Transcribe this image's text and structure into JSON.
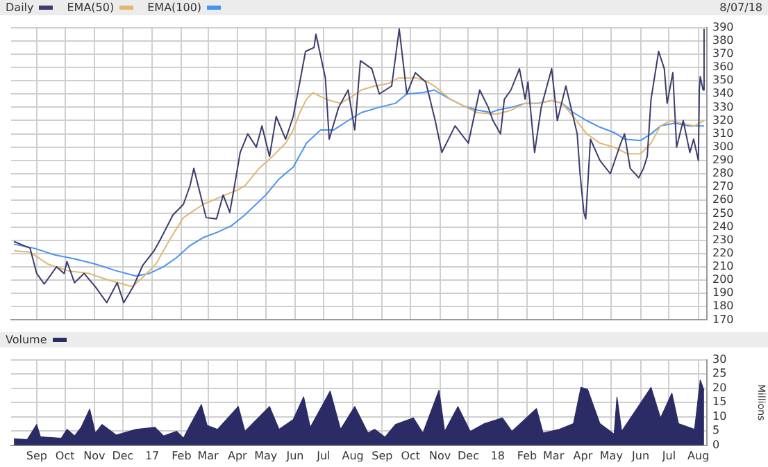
{
  "chart_data": [
    {
      "type": "line",
      "title": "8/07/18",
      "legend": "top left",
      "grid": true,
      "marker": "none",
      "tick_labels": "y",
      "xlim": [
        "2016-08-05",
        "2018-08-10"
      ],
      "xticks": [
        {
          "value": "2016-09-01",
          "label": null
        },
        {
          "value": "2016-10-01",
          "label": null
        },
        {
          "value": "2016-11-01",
          "label": null
        },
        {
          "value": "2016-12-01",
          "label": null
        },
        {
          "value": "2017-01-01",
          "label": null
        },
        {
          "value": "2017-02-01",
          "label": null
        },
        {
          "value": "2017-03-01",
          "label": null
        },
        {
          "value": "2017-04-01",
          "label": null
        },
        {
          "value": "2017-05-01",
          "label": null
        },
        {
          "value": "2017-06-01",
          "label": null
        },
        {
          "value": "2017-07-01",
          "label": null
        },
        {
          "value": "2017-08-01",
          "label": null
        },
        {
          "value": "2017-09-01",
          "label": null
        },
        {
          "value": "2017-10-01",
          "label": null
        },
        {
          "value": "2017-11-01",
          "label": null
        },
        {
          "value": "2017-12-01",
          "label": null
        },
        {
          "value": "2018-01-01",
          "label": null
        },
        {
          "value": "2018-02-01",
          "label": null
        },
        {
          "value": "2018-03-01",
          "label": null
        },
        {
          "value": "2018-04-01",
          "label": null
        },
        {
          "value": "2018-05-01",
          "label": null
        },
        {
          "value": "2018-06-01",
          "label": null
        },
        {
          "value": "2018-07-01",
          "label": null
        },
        {
          "value": "2018-08-01",
          "label": null
        }
      ],
      "ylim": [
        170,
        390
      ],
      "yticks": [
        170,
        180,
        190,
        200,
        210,
        220,
        230,
        240,
        250,
        260,
        270,
        280,
        290,
        300,
        310,
        320,
        330,
        340,
        350,
        360,
        370,
        380,
        390
      ],
      "series": [
        {
          "name": "Daily",
          "color": "#3c3c6e",
          "x": [
            "2016-08-08",
            "2016-08-25",
            "2016-09-01",
            "2016-09-09",
            "2016-09-22",
            "2016-09-30",
            "2016-10-03",
            "2016-10-11",
            "2016-10-21",
            "2016-11-02",
            "2016-11-14",
            "2016-11-25",
            "2016-12-02",
            "2016-12-12",
            "2016-12-22",
            "2017-01-03",
            "2017-01-10",
            "2017-01-23",
            "2017-02-03",
            "2017-02-10",
            "2017-02-14",
            "2017-02-20",
            "2017-02-27",
            "2017-03-10",
            "2017-03-17",
            "2017-03-24",
            "2017-03-29",
            "2017-04-04",
            "2017-04-12",
            "2017-04-21",
            "2017-04-27",
            "2017-05-05",
            "2017-05-12",
            "2017-05-22",
            "2017-05-30",
            "2017-06-06",
            "2017-06-12",
            "2017-06-21",
            "2017-06-23",
            "2017-07-03",
            "2017-07-07",
            "2017-07-17",
            "2017-07-27",
            "2017-08-03",
            "2017-08-09",
            "2017-08-21",
            "2017-08-29",
            "2017-09-11",
            "2017-09-19",
            "2017-09-27",
            "2017-10-06",
            "2017-10-17",
            "2017-10-27",
            "2017-11-03",
            "2017-11-17",
            "2017-12-01",
            "2017-12-13",
            "2017-12-22",
            "2017-12-27",
            "2018-01-04",
            "2018-01-08",
            "2018-01-15",
            "2018-01-24",
            "2018-01-30",
            "2018-02-02",
            "2018-02-09",
            "2018-02-16",
            "2018-02-27",
            "2018-03-05",
            "2018-03-14",
            "2018-03-26",
            "2018-03-29",
            "2018-04-02",
            "2018-04-04",
            "2018-04-09",
            "2018-04-19",
            "2018-04-30",
            "2018-05-11",
            "2018-05-15",
            "2018-05-21",
            "2018-05-30",
            "2018-06-04",
            "2018-06-08",
            "2018-06-12",
            "2018-06-20",
            "2018-06-26",
            "2018-06-29",
            "2018-07-05",
            "2018-07-09",
            "2018-07-16",
            "2018-07-23",
            "2018-07-27",
            "2018-08-01",
            "2018-08-02",
            "2018-08-03",
            "2018-08-06",
            "2018-08-07"
          ],
          "values": [
            229,
            224,
            205,
            197,
            210,
            205,
            214,
            198,
            205,
            195,
            183,
            198,
            183,
            195,
            211,
            222,
            231,
            249,
            257,
            271,
            284,
            267,
            247,
            246,
            264,
            251,
            271,
            296,
            310,
            300,
            316,
            293,
            323,
            306,
            323,
            349,
            372,
            375,
            385,
            352,
            306,
            330,
            343,
            313,
            365,
            359,
            340,
            346,
            389,
            340,
            356,
            349,
            320,
            296,
            316,
            303,
            343,
            330,
            320,
            310,
            336,
            343,
            359,
            336,
            349,
            296,
            330,
            359,
            320,
            346,
            310,
            280,
            251,
            246,
            306,
            290,
            280,
            303,
            310,
            284,
            277,
            284,
            293,
            336,
            372,
            359,
            333,
            356,
            300,
            320,
            296,
            306,
            290,
            343,
            353,
            343,
            389
          ]
        },
        {
          "name": "EMA(50)",
          "color": "#e0b872",
          "x": [
            "2016-08-08",
            "2016-08-25",
            "2016-09-13",
            "2016-10-04",
            "2016-10-26",
            "2016-11-16",
            "2016-12-11",
            "2016-12-22",
            "2017-01-05",
            "2017-01-20",
            "2017-02-03",
            "2017-02-24",
            "2017-03-19",
            "2017-04-02",
            "2017-04-09",
            "2017-04-24",
            "2017-05-08",
            "2017-05-22",
            "2017-05-30",
            "2017-06-06",
            "2017-06-13",
            "2017-06-20",
            "2017-06-28",
            "2017-07-08",
            "2017-07-19",
            "2017-07-31",
            "2017-08-10",
            "2017-08-24",
            "2017-09-08",
            "2017-09-18",
            "2017-09-27",
            "2017-10-07",
            "2017-10-17",
            "2017-10-28",
            "2017-11-12",
            "2017-11-26",
            "2017-12-10",
            "2017-12-25",
            "2018-01-01",
            "2018-01-16",
            "2018-01-30",
            "2018-02-13",
            "2018-02-27",
            "2018-03-10",
            "2018-03-22",
            "2018-04-05",
            "2018-04-19",
            "2018-05-04",
            "2018-05-18",
            "2018-06-01",
            "2018-06-12",
            "2018-06-22",
            "2018-07-03",
            "2018-07-14",
            "2018-07-28",
            "2018-08-07"
          ],
          "values": [
            222,
            221,
            212,
            207,
            205,
            200,
            195,
            202,
            212,
            231,
            247,
            257,
            264,
            268,
            271,
            284,
            293,
            303,
            313,
            326,
            336,
            341,
            338,
            335,
            333,
            338,
            343,
            346,
            348,
            352,
            352,
            352,
            350,
            345,
            336,
            331,
            326,
            325,
            325,
            328,
            333,
            333,
            335,
            333,
            323,
            310,
            303,
            300,
            295,
            295,
            303,
            316,
            320,
            318,
            316,
            320
          ]
        },
        {
          "name": "EMA(100)",
          "color": "#4a94f0",
          "x": [
            "2016-08-08",
            "2016-08-29",
            "2016-09-20",
            "2016-10-11",
            "2016-11-02",
            "2016-11-24",
            "2016-12-15",
            "2016-12-29",
            "2017-01-13",
            "2017-01-27",
            "2017-02-10",
            "2017-02-24",
            "2017-03-11",
            "2017-03-26",
            "2017-04-09",
            "2017-05-01",
            "2017-05-15",
            "2017-05-30",
            "2017-06-13",
            "2017-06-28",
            "2017-07-12",
            "2017-07-27",
            "2017-08-10",
            "2017-08-29",
            "2017-09-15",
            "2017-09-27",
            "2017-10-14",
            "2017-10-26",
            "2017-11-12",
            "2017-11-26",
            "2017-12-10",
            "2017-12-25",
            "2018-01-01",
            "2018-01-16",
            "2018-01-30",
            "2018-02-13",
            "2018-02-27",
            "2018-03-10",
            "2018-03-22",
            "2018-04-05",
            "2018-04-19",
            "2018-05-04",
            "2018-05-15",
            "2018-06-01",
            "2018-06-12",
            "2018-06-22",
            "2018-07-07",
            "2018-07-21",
            "2018-08-07"
          ],
          "values": [
            227,
            224,
            219,
            216,
            212,
            207,
            203,
            205,
            210,
            217,
            226,
            232,
            236,
            241,
            249,
            264,
            276,
            285,
            303,
            313,
            313,
            320,
            326,
            330,
            333,
            340,
            341,
            343,
            336,
            331,
            328,
            326,
            328,
            330,
            333,
            333,
            335,
            333,
            326,
            320,
            315,
            311,
            306,
            305,
            310,
            316,
            318,
            316,
            316
          ]
        }
      ]
    },
    {
      "type": "area",
      "legend": "top left",
      "grid": true,
      "marker": "none",
      "ylabel": "Millions",
      "xlim": [
        "2016-08-05",
        "2018-08-10"
      ],
      "xticks": [
        {
          "value": "2016-09-01",
          "label": "Sep"
        },
        {
          "value": "2016-10-01",
          "label": "Oct"
        },
        {
          "value": "2016-11-01",
          "label": "Nov"
        },
        {
          "value": "2016-12-01",
          "label": "Dec"
        },
        {
          "value": "2017-01-01",
          "label": "17"
        },
        {
          "value": "2017-02-01",
          "label": "Feb"
        },
        {
          "value": "2017-03-01",
          "label": "Mar"
        },
        {
          "value": "2017-04-01",
          "label": "Apr"
        },
        {
          "value": "2017-05-01",
          "label": "May"
        },
        {
          "value": "2017-06-01",
          "label": "Jun"
        },
        {
          "value": "2017-07-01",
          "label": "Jul"
        },
        {
          "value": "2017-08-01",
          "label": "Aug"
        },
        {
          "value": "2017-09-01",
          "label": "Sep"
        },
        {
          "value": "2017-10-01",
          "label": "Oct"
        },
        {
          "value": "2017-11-01",
          "label": "Nov"
        },
        {
          "value": "2017-12-01",
          "label": "Dec"
        },
        {
          "value": "2018-01-01",
          "label": "18"
        },
        {
          "value": "2018-02-01",
          "label": "Feb"
        },
        {
          "value": "2018-03-01",
          "label": "Mar"
        },
        {
          "value": "2018-04-01",
          "label": "Apr"
        },
        {
          "value": "2018-05-01",
          "label": "May"
        },
        {
          "value": "2018-06-01",
          "label": "Jun"
        },
        {
          "value": "2018-07-01",
          "label": "Jul"
        },
        {
          "value": "2018-08-01",
          "label": "Aug"
        }
      ],
      "ylim": [
        0,
        30
      ],
      "yticks": [
        0,
        5,
        10,
        15,
        20,
        25,
        30
      ],
      "series": [
        {
          "name": "Volume",
          "color": "#2b2b66",
          "x": [
            "2016-08-08",
            "2016-08-22",
            "2016-09-01",
            "2016-09-05",
            "2016-09-27",
            "2016-10-03",
            "2016-10-11",
            "2016-10-18",
            "2016-10-27",
            "2016-11-02",
            "2016-11-09",
            "2016-11-24",
            "2016-12-15",
            "2017-01-04",
            "2017-01-13",
            "2017-01-27",
            "2017-02-03",
            "2017-02-10",
            "2017-02-22",
            "2017-02-28",
            "2017-03-11",
            "2017-04-02",
            "2017-04-09",
            "2017-05-05",
            "2017-05-15",
            "2017-05-30",
            "2017-06-10",
            "2017-06-17",
            "2017-07-08",
            "2017-07-19",
            "2017-08-03",
            "2017-08-17",
            "2017-08-24",
            "2017-09-04",
            "2017-09-15",
            "2017-10-04",
            "2017-10-14",
            "2017-10-31",
            "2017-11-06",
            "2017-11-20",
            "2017-12-03",
            "2017-12-18",
            "2018-01-06",
            "2018-01-16",
            "2018-02-11",
            "2018-02-18",
            "2018-03-07",
            "2018-03-22",
            "2018-03-30",
            "2018-04-06",
            "2018-04-19",
            "2018-05-04",
            "2018-05-07",
            "2018-05-12",
            "2018-06-08",
            "2018-06-12",
            "2018-06-22",
            "2018-07-04",
            "2018-07-11",
            "2018-07-28",
            "2018-08-03",
            "2018-08-07"
          ],
          "values": [
            2.3,
            2,
            7.3,
            3,
            2.5,
            5.6,
            3.3,
            6.3,
            12.7,
            4.3,
            7.3,
            3.6,
            5.6,
            6.3,
            3.3,
            4.9,
            2.5,
            7,
            14.3,
            7,
            5.6,
            13.6,
            4.9,
            13.6,
            5.6,
            9,
            17,
            6.3,
            19,
            5.6,
            13.6,
            4.3,
            5.6,
            2.9,
            7.3,
            9.6,
            4.3,
            19.3,
            4.9,
            13.6,
            4.9,
            7.6,
            9.6,
            4.9,
            12.9,
            4.3,
            5.6,
            7.6,
            20.3,
            19.6,
            7.6,
            3.9,
            16.9,
            4.9,
            18.3,
            20.3,
            9.6,
            18.3,
            7.6,
            5.6,
            22.9,
            19.2
          ]
        }
      ]
    }
  ]
}
